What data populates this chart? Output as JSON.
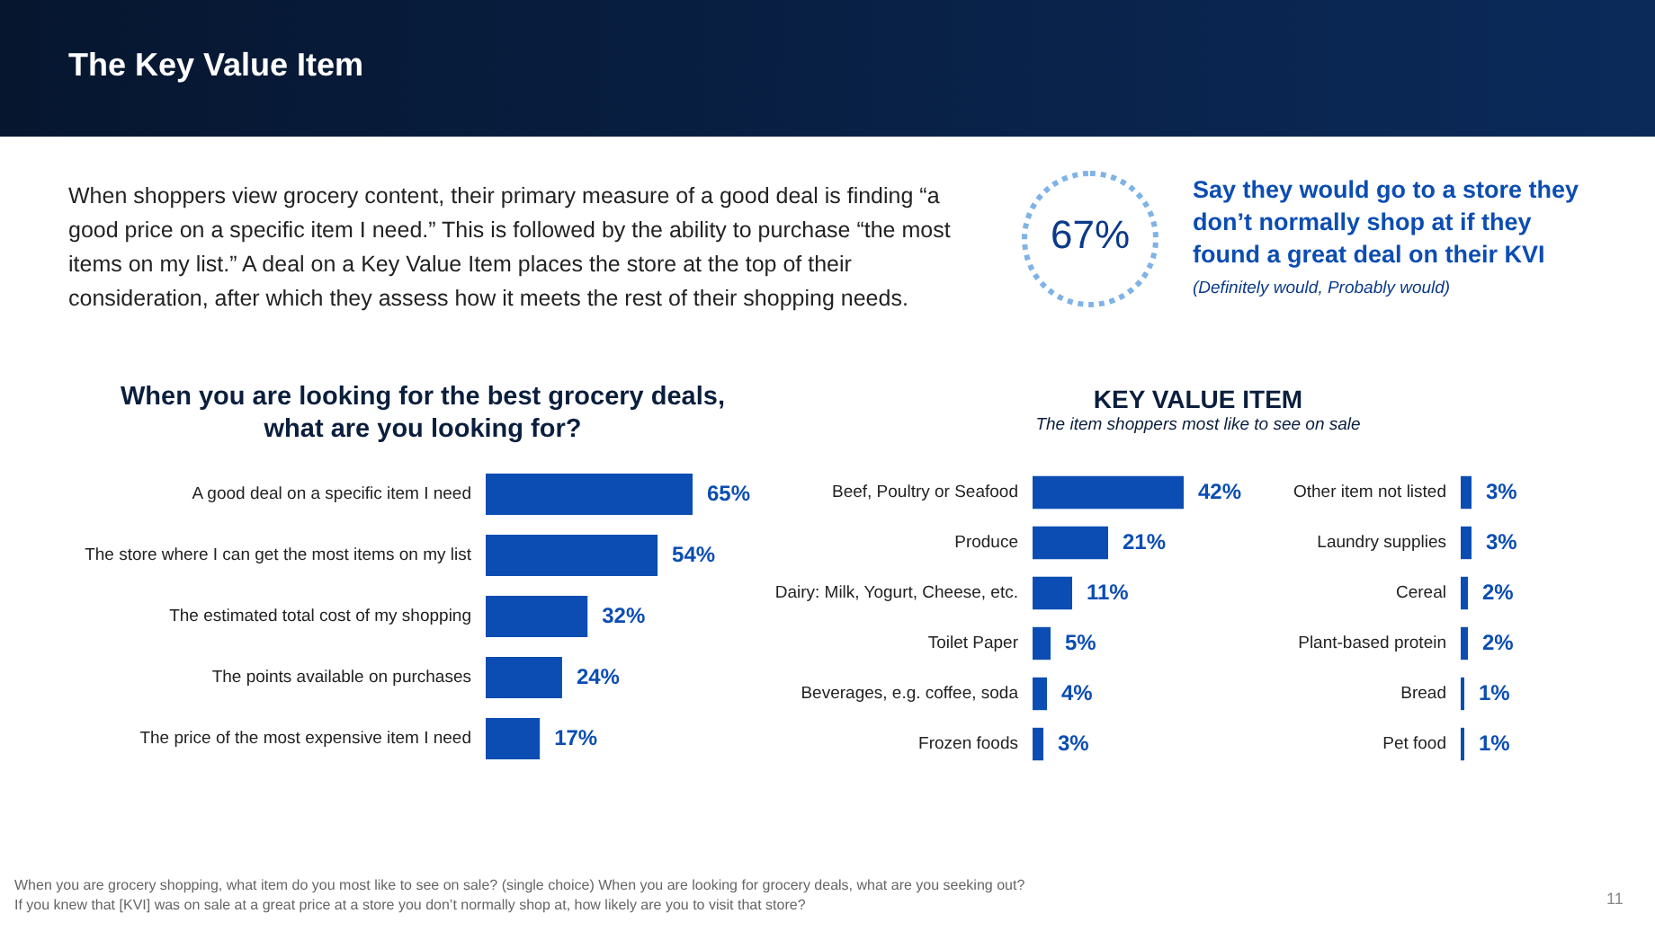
{
  "chart_data": [
    {
      "type": "other",
      "title": "Say they would go to a store they don’t normally shop at if they found a great deal on their KVI",
      "subtitle": "(Definitely would, Probably would)",
      "annotations": [
        "The Key Value Item",
        "When shoppers view grocery content, their primary measure of a good deal is finding “a good price on a specific item I need.” This is followed by the ability to purchase “the most items on my list.” A deal on a Key Value Item places the store at the top of their consideration, after which they assess how it meets the rest of their shopping needs.",
        "67%",
        "When you are grocery shopping, what item do you most like to see on sale? (single choice) When you are looking for grocery deals, what are you seeking out?",
        "If you knew that [KVI] was on sale at a great price at a store you don’t normally shop at, how likely are you to visit that store?",
        "11"
      ]
    },
    {
      "type": "bar",
      "orientation": "horizontal",
      "title": "When you are looking for the best grocery deals, what are you looking for?",
      "categories": [
        "A good deal on a specific item I need",
        "The store where I can get the most items on my list",
        "The estimated total cost of my shopping",
        "The points available on purchases",
        "The price of the most expensive item I need"
      ],
      "values": [
        65,
        54,
        32,
        24,
        17
      ],
      "value_labels": [
        "65%",
        "54%",
        "32%",
        "24%",
        "17%"
      ],
      "color": "#0b4db3"
    },
    {
      "type": "bar",
      "orientation": "horizontal",
      "title": "KEY VALUE ITEM",
      "subtitle": "The item shoppers most like to see on sale",
      "categories": [
        "Beef, Poultry or Seafood",
        "Produce",
        "Dairy: Milk, Yogurt, Cheese, etc.",
        "Toilet Paper",
        "Beverages, e.g. coffee, soda",
        "Frozen foods"
      ],
      "values": [
        42,
        21,
        11,
        5,
        4,
        3
      ],
      "value_labels": [
        "42%",
        "21%",
        "11%",
        "5%",
        "4%",
        "3%"
      ],
      "color": "#0b4db3"
    },
    {
      "type": "bar",
      "orientation": "horizontal",
      "categories": [
        "Other item not listed",
        "Laundry supplies",
        "Cereal",
        "Plant-based protein",
        "Bread",
        "Pet food"
      ],
      "values": [
        3,
        3,
        2,
        2,
        1,
        1
      ],
      "value_labels": [
        "3%",
        "3%",
        "2%",
        "2%",
        "1%",
        "1%"
      ],
      "color": "#0b4db3"
    }
  ]
}
